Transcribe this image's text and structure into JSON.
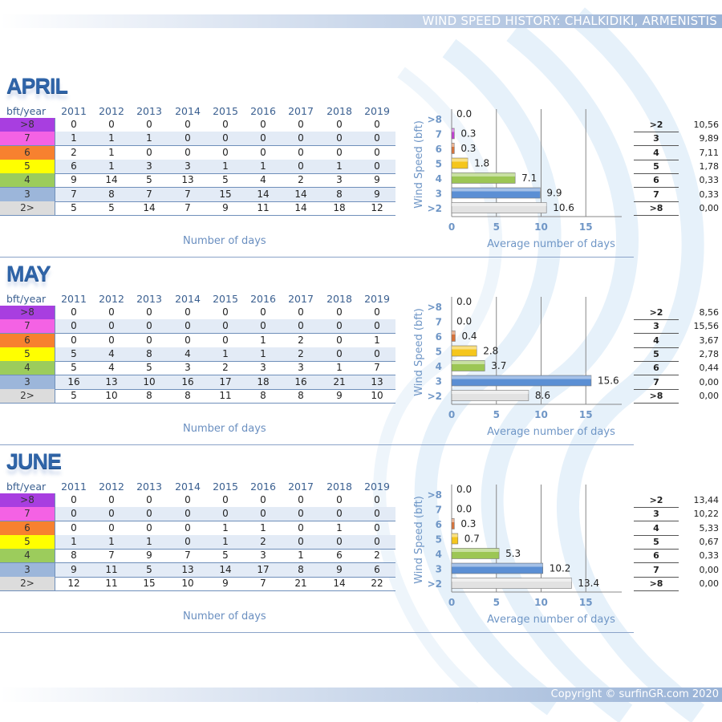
{
  "header": {
    "title": "WIND SPEED HISTORY: CHALKIDIKI, ARMENISTIS"
  },
  "footer": {
    "copyright": "Copyright © surfinGR.com 2020"
  },
  "table_colors": {
    ">8": "#a83ee0",
    "7": "#f462e4",
    "6": "#f7812f",
    "5": "#ffff00",
    "4": "#9ccc5c",
    "3": "#9cb6da",
    "2>": "#dcdcdc"
  },
  "bar_colors": {
    ">8": "#b040d0",
    "7": "#c040d0",
    "6": "#d8733a",
    "5": "#f5c61c",
    "4": "#9cc654",
    "3": "#5b8fd4",
    ">2": "#e2e2e2"
  },
  "common": {
    "corner_label": "bft/year",
    "years": [
      "2011",
      "2012",
      "2013",
      "2014",
      "2015",
      "2016",
      "2017",
      "2018",
      "2019"
    ],
    "row_labels": [
      ">8",
      "7",
      "6",
      "5",
      "4",
      "3",
      "2>"
    ],
    "table_caption": "Number of days",
    "chart_xlabel": "Average number of days",
    "chart_ylabel": "Wind Speed (bft)",
    "chart_categories": [
      ">8",
      "7",
      "6",
      "5",
      "4",
      "3",
      ">2"
    ],
    "chart_xticks": [
      "0",
      "5",
      "10",
      "15"
    ],
    "summary_labels": [
      ">2",
      "3",
      "4",
      "5",
      "6",
      "7",
      ">8"
    ]
  },
  "months": [
    {
      "name": "APRIL",
      "rows": [
        [
          "0",
          "0",
          "0",
          "0",
          "0",
          "0",
          "0",
          "0",
          "0"
        ],
        [
          "1",
          "1",
          "1",
          "0",
          "0",
          "0",
          "0",
          "0",
          "0"
        ],
        [
          "2",
          "1",
          "0",
          "0",
          "0",
          "0",
          "0",
          "0",
          "0"
        ],
        [
          "6",
          "1",
          "3",
          "3",
          "1",
          "1",
          "0",
          "1",
          "0"
        ],
        [
          "9",
          "14",
          "5",
          "13",
          "5",
          "4",
          "2",
          "3",
          "9"
        ],
        [
          "7",
          "8",
          "7",
          "7",
          "15",
          "14",
          "14",
          "8",
          "9"
        ],
        [
          "5",
          "5",
          "14",
          "7",
          "9",
          "11",
          "14",
          "18",
          "12"
        ]
      ],
      "summary_values": [
        "10,56",
        "9,89",
        "7,11",
        "1,78",
        "0,33",
        "0,33",
        "0,00"
      ]
    },
    {
      "name": "MAY",
      "rows": [
        [
          "0",
          "0",
          "0",
          "0",
          "0",
          "0",
          "0",
          "0",
          "0"
        ],
        [
          "0",
          "0",
          "0",
          "0",
          "0",
          "0",
          "0",
          "0",
          "0"
        ],
        [
          "0",
          "0",
          "0",
          "0",
          "0",
          "1",
          "2",
          "0",
          "1"
        ],
        [
          "5",
          "4",
          "8",
          "4",
          "1",
          "1",
          "2",
          "0",
          "0"
        ],
        [
          "5",
          "4",
          "5",
          "3",
          "2",
          "3",
          "3",
          "1",
          "7"
        ],
        [
          "16",
          "13",
          "10",
          "16",
          "17",
          "18",
          "16",
          "21",
          "13"
        ],
        [
          "5",
          "10",
          "8",
          "8",
          "11",
          "8",
          "8",
          "9",
          "10"
        ]
      ],
      "summary_values": [
        "8,56",
        "15,56",
        "3,67",
        "2,78",
        "0,44",
        "0,00",
        "0,00"
      ]
    },
    {
      "name": "JUNE",
      "rows": [
        [
          "0",
          "0",
          "0",
          "0",
          "0",
          "0",
          "0",
          "0",
          "0"
        ],
        [
          "0",
          "0",
          "0",
          "0",
          "0",
          "0",
          "0",
          "0",
          "0"
        ],
        [
          "0",
          "0",
          "0",
          "0",
          "1",
          "1",
          "0",
          "1",
          "0"
        ],
        [
          "1",
          "1",
          "1",
          "0",
          "1",
          "2",
          "0",
          "0",
          "0"
        ],
        [
          "8",
          "7",
          "9",
          "7",
          "5",
          "3",
          "1",
          "6",
          "2"
        ],
        [
          "9",
          "11",
          "5",
          "13",
          "14",
          "17",
          "8",
          "9",
          "6"
        ],
        [
          "12",
          "11",
          "15",
          "10",
          "9",
          "7",
          "21",
          "14",
          "22"
        ]
      ],
      "summary_values": [
        "13,44",
        "10,22",
        "5,33",
        "0,67",
        "0,33",
        "0,00",
        "0,00"
      ]
    }
  ],
  "chart_data": [
    {
      "type": "bar",
      "orientation": "horizontal",
      "title": "APRIL",
      "categories": [
        ">8",
        "7",
        "6",
        "5",
        "4",
        "3",
        ">2"
      ],
      "values": [
        0.0,
        0.3,
        0.3,
        1.8,
        7.1,
        9.9,
        10.6
      ],
      "labels": [
        "0.0",
        "0.3",
        "0.3",
        "1.8",
        "7.1",
        "9.9",
        "10.6"
      ],
      "xlabel": "Average number of days",
      "ylabel": "Wind Speed (bft)",
      "xlim": [
        0,
        19
      ],
      "xticks": [
        0,
        5,
        10,
        15
      ],
      "grid": true
    },
    {
      "type": "bar",
      "orientation": "horizontal",
      "title": "MAY",
      "categories": [
        ">8",
        "7",
        "6",
        "5",
        "4",
        "3",
        ">2"
      ],
      "values": [
        0.0,
        0.0,
        0.4,
        2.8,
        3.7,
        15.6,
        8.6
      ],
      "labels": [
        "0.0",
        "0.0",
        "0.4",
        "2.8",
        "3.7",
        "15.6",
        "8.6"
      ],
      "xlabel": "Average number of days",
      "ylabel": "Wind Speed (bft)",
      "xlim": [
        0,
        19
      ],
      "xticks": [
        0,
        5,
        10,
        15
      ],
      "grid": true
    },
    {
      "type": "bar",
      "orientation": "horizontal",
      "title": "JUNE",
      "categories": [
        ">8",
        "7",
        "6",
        "5",
        "4",
        "3",
        ">2"
      ],
      "values": [
        0.0,
        0.0,
        0.3,
        0.7,
        5.3,
        10.2,
        13.4
      ],
      "labels": [
        "0.0",
        "0.0",
        "0.3",
        "0.7",
        "5.3",
        "10.2",
        "13.4"
      ],
      "xlabel": "Average number of days",
      "ylabel": "Wind Speed (bft)",
      "xlim": [
        0,
        19
      ],
      "xticks": [
        0,
        5,
        10,
        15
      ],
      "grid": true
    }
  ]
}
